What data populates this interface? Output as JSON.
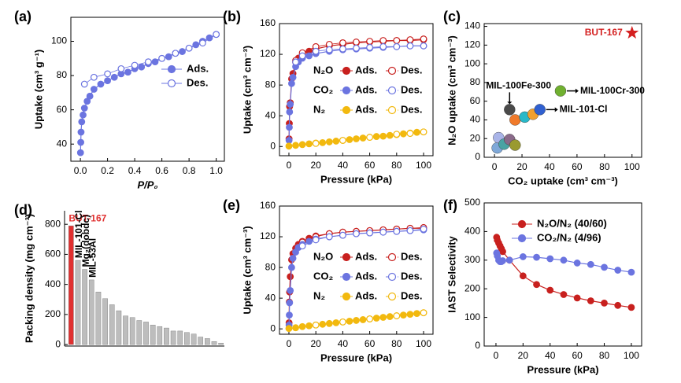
{
  "chart_data": [
    {
      "type": "line",
      "panel": "(a)",
      "xlabel": "P/P₀",
      "ylabel": "Uptake (cm³ g⁻¹)",
      "xlim": [
        -0.07,
        1.06
      ],
      "ylim": [
        30,
        114
      ],
      "xticks": [
        {
          "value": 0,
          "label": "0.0"
        },
        {
          "value": 0.2,
          "label": "0.2"
        },
        {
          "value": 0.4,
          "label": "0.4"
        },
        {
          "value": 0.6,
          "label": "0.6"
        },
        {
          "value": 0.8,
          "label": "0.8"
        },
        {
          "value": 1,
          "label": "1.0"
        }
      ],
      "yticks": [
        40,
        60,
        80,
        100
      ],
      "series": [
        {
          "name": "Ads.",
          "color": "#6b74e0",
          "marker": "filled",
          "x": [
            0.001,
            0.003,
            0.005,
            0.01,
            0.02,
            0.03,
            0.05,
            0.07,
            0.1,
            0.15,
            0.2,
            0.25,
            0.3,
            0.35,
            0.4,
            0.45,
            0.5,
            0.55,
            0.6,
            0.65,
            0.7,
            0.75,
            0.8,
            0.85,
            0.9,
            0.95,
            1.0
          ],
          "values": [
            35,
            41,
            47,
            53,
            57,
            61,
            65,
            68,
            72,
            75,
            77,
            79,
            81,
            82,
            84,
            85,
            87,
            88,
            90,
            91,
            93,
            94,
            96,
            98,
            100,
            102,
            104
          ]
        },
        {
          "name": "Des.",
          "color": "#6b74e0",
          "marker": "open",
          "x": [
            0.03,
            0.1,
            0.2,
            0.3,
            0.4,
            0.5,
            0.6,
            0.7,
            0.8,
            0.9,
            1.0
          ],
          "values": [
            75,
            79,
            81,
            84,
            86,
            88,
            90,
            93,
            96,
            99,
            104
          ]
        }
      ]
    },
    {
      "type": "line",
      "panel": "(b)",
      "xlabel": "Pressure (kPa)",
      "ylabel": "Uptake (cm³ cm⁻³)",
      "xlim": [
        -7,
        107
      ],
      "ylim": [
        -12,
        160
      ],
      "xticks": [
        0,
        20,
        40,
        60,
        80,
        100
      ],
      "yticks": [
        0,
        40,
        80,
        120,
        160
      ],
      "series": [
        {
          "group": "N₂O",
          "name": "Ads.",
          "color": "#c8201e",
          "marker": "filled",
          "x": [
            0.1,
            0.3,
            0.5,
            1,
            2,
            3,
            5,
            7,
            10,
            15,
            20,
            30,
            40,
            50,
            60,
            70,
            80,
            90,
            100
          ],
          "values": [
            10,
            30,
            52,
            57,
            88,
            95,
            110,
            115,
            120,
            124,
            127,
            131,
            133,
            135,
            136,
            137,
            138,
            138,
            139
          ]
        },
        {
          "group": "N₂O",
          "name": "Des.",
          "color": "#c8201e",
          "marker": "open",
          "x": [
            5,
            10,
            20,
            30,
            40,
            50,
            60,
            70,
            80,
            90,
            100
          ],
          "values": [
            112,
            122,
            130,
            133,
            135,
            136,
            137,
            138,
            138,
            139,
            140
          ]
        },
        {
          "group": "CO₂",
          "name": "Ads.",
          "color": "#6b74e0",
          "marker": "filled",
          "x": [
            0.1,
            0.3,
            0.5,
            1,
            2,
            3,
            5,
            7,
            10,
            15,
            20,
            30,
            40,
            50,
            60,
            70,
            80,
            90,
            100
          ],
          "values": [
            8,
            25,
            45,
            55,
            82,
            90,
            104,
            110,
            115,
            118,
            121,
            124,
            126,
            127,
            128,
            129,
            130,
            131,
            131
          ]
        },
        {
          "group": "CO₂",
          "name": "Des.",
          "color": "#6b74e0",
          "marker": "open",
          "x": [
            5,
            10,
            20,
            30,
            40,
            50,
            60,
            70,
            80,
            90,
            100
          ],
          "values": [
            110,
            118,
            124,
            126,
            127,
            128,
            129,
            130,
            130,
            131,
            131
          ]
        },
        {
          "group": "N₂",
          "name": "Ads.",
          "color": "#f2b90f",
          "marker": "filled",
          "x": [
            0,
            5,
            10,
            15,
            20,
            25,
            30,
            35,
            40,
            45,
            50,
            55,
            60,
            65,
            70,
            75,
            80,
            85,
            90,
            95,
            100
          ],
          "values": [
            0.5,
            1.5,
            2.5,
            3.5,
            4.5,
            5,
            6,
            7,
            8,
            9,
            10,
            11,
            12,
            13,
            13.5,
            14.5,
            15.5,
            16.5,
            17.5,
            18.5,
            19
          ]
        },
        {
          "group": "N₂",
          "name": "Des.",
          "color": "#f2b90f",
          "marker": "open",
          "x": [
            20,
            40,
            60,
            80,
            90,
            100
          ],
          "values": [
            4,
            8,
            12,
            16,
            17,
            19
          ]
        }
      ]
    },
    {
      "type": "scatter",
      "panel": "(c)",
      "xlabel": "CO₂ uptake (cm³ cm⁻³)",
      "ylabel": "N₂O uptake (cm³ cm⁻³)",
      "xlim": [
        -7.5,
        107
      ],
      "ylim": [
        0,
        143
      ],
      "xticks": [
        0,
        20,
        40,
        60,
        80,
        100
      ],
      "yticks": [
        0,
        20,
        40,
        60,
        80,
        100,
        120,
        140
      ],
      "x": [
        2,
        3,
        7,
        11,
        15,
        11,
        15,
        22,
        28,
        33,
        48,
        100
      ],
      "values": [
        10,
        21,
        14,
        19,
        13,
        51,
        40,
        43,
        46,
        51,
        71,
        133
      ],
      "colors": [
        "#7fa8d8",
        "#a9b4e8",
        "#4aa3a3",
        "#8a6a8a",
        "#9a9a30",
        "#4a4a4a",
        "#f07a2a",
        "#28b8c8",
        "#f0a030",
        "#3060d0",
        "#70b030",
        "#d42020"
      ],
      "markers": [
        "circle",
        "circle",
        "circle",
        "circle",
        "circle",
        "circle",
        "circle",
        "circle",
        "circle",
        "circle",
        "circle",
        "star"
      ],
      "point_labels": [
        null,
        null,
        null,
        null,
        null,
        "MIL-100Fe-300",
        null,
        null,
        null,
        "MIL-101-Cl",
        "MIL-100Cr-300",
        "BUT-167"
      ]
    },
    {
      "type": "bar",
      "panel": "(d)",
      "ylabel": "Packing density (mg cm⁻³)",
      "ylim": [
        -10,
        890
      ],
      "yticks": [
        0,
        200,
        400,
        600,
        800
      ],
      "categories": [
        null,
        null,
        null,
        null,
        null,
        null,
        null,
        null,
        null,
        null,
        null,
        null,
        null,
        null,
        null,
        null,
        null,
        null,
        null,
        null,
        null,
        null,
        null
      ],
      "values": [
        790,
        560,
        500,
        430,
        350,
        305,
        265,
        225,
        190,
        180,
        160,
        150,
        130,
        120,
        110,
        90,
        90,
        80,
        70,
        50,
        40,
        20,
        10
      ],
      "colors": [
        "#e03030",
        "#bdbdbd",
        "#bdbdbd",
        "#bdbdbd",
        "#bdbdbd",
        "#bdbdbd",
        "#bdbdbd",
        "#bdbdbd",
        "#bdbdbd",
        "#bdbdbd",
        "#bdbdbd",
        "#bdbdbd",
        "#bdbdbd",
        "#bdbdbd",
        "#bdbdbd",
        "#bdbdbd",
        "#bdbdbd",
        "#bdbdbd",
        "#bdbdbd",
        "#bdbdbd",
        "#bdbdbd",
        "#bdbdbd",
        "#bdbdbd"
      ],
      "bar_labels": [
        "BUT-167",
        "MIL-101-Cl",
        "Mg₂(dobdc)",
        "MIL-53Al",
        null,
        null,
        null,
        null,
        null,
        null,
        null,
        null,
        null,
        null,
        null,
        null,
        null,
        null,
        null,
        null,
        null,
        null,
        null
      ]
    },
    {
      "type": "line",
      "panel": "(e)",
      "xlabel": "Pressure (kPa)",
      "ylabel": "Uptake (cm³ cm⁻³)",
      "xlim": [
        -7,
        107
      ],
      "ylim": [
        -7,
        160
      ],
      "xticks": [
        0,
        20,
        40,
        60,
        80,
        100
      ],
      "yticks": [
        0,
        40,
        80,
        120,
        160
      ],
      "series": [
        {
          "group": "N₂O",
          "name": "Ads.",
          "color": "#c8201e",
          "marker": "filled",
          "x": [
            0.1,
            0.3,
            0.5,
            1,
            2,
            3,
            5,
            7,
            10,
            15,
            20,
            30,
            40,
            50,
            60,
            70,
            80,
            90,
            100
          ],
          "values": [
            8,
            35,
            48,
            68,
            90,
            98,
            105,
            110,
            114,
            118,
            121,
            124,
            126,
            127,
            128,
            129,
            130,
            131,
            131
          ]
        },
        {
          "group": "N₂O",
          "name": "Des.",
          "color": "#c8201e",
          "marker": "open",
          "x": [
            10,
            20,
            30,
            40,
            50,
            60,
            70,
            80,
            90,
            100
          ],
          "values": [
            113,
            120,
            124,
            126,
            127,
            128,
            129,
            130,
            131,
            132
          ]
        },
        {
          "group": "CO₂",
          "name": "Ads.",
          "color": "#6b74e0",
          "marker": "filled",
          "x": [
            0.1,
            0.3,
            0.5,
            1,
            2,
            3,
            5,
            7,
            10,
            15,
            20,
            30,
            40,
            50,
            60,
            70,
            80,
            90,
            100
          ],
          "values": [
            5,
            18,
            34,
            50,
            80,
            92,
            100,
            106,
            110,
            114,
            117,
            120,
            122,
            124,
            125,
            126,
            127,
            128,
            129
          ]
        },
        {
          "group": "CO₂",
          "name": "Des.",
          "color": "#6b74e0",
          "marker": "open",
          "x": [
            10,
            20,
            30,
            40,
            50,
            60,
            70,
            80,
            90,
            100
          ],
          "values": [
            108,
            116,
            120,
            122,
            124,
            125,
            126,
            127,
            128,
            130
          ]
        },
        {
          "group": "N₂",
          "name": "Ads.",
          "color": "#f2b90f",
          "marker": "filled",
          "x": [
            0,
            5,
            10,
            15,
            20,
            25,
            30,
            35,
            40,
            45,
            50,
            55,
            60,
            65,
            70,
            75,
            80,
            85,
            90,
            95,
            100
          ],
          "values": [
            0.5,
            1.5,
            3,
            4,
            5,
            6,
            7,
            8,
            9,
            10,
            11,
            12,
            13,
            14,
            15,
            16,
            17,
            18,
            19,
            20,
            21
          ]
        },
        {
          "group": "N₂",
          "name": "Des.",
          "color": "#f2b90f",
          "marker": "open",
          "x": [
            20,
            40,
            60,
            80,
            100
          ],
          "values": [
            5,
            9,
            13,
            17,
            21
          ]
        }
      ]
    },
    {
      "type": "line",
      "panel": "(f)",
      "xlabel": "Pressure (kPa)",
      "ylabel": "IAST Selectivity",
      "xlim": [
        -8.7,
        107.6
      ],
      "ylim": [
        0,
        500
      ],
      "xticks": [
        0,
        20,
        40,
        60,
        80,
        100
      ],
      "yticks": [
        0,
        100,
        200,
        300,
        400,
        500
      ],
      "series": [
        {
          "name": "N₂O/N₂ (40/60)",
          "color": "#c8201e",
          "marker": "filled",
          "x": [
            0.5,
            1,
            2,
            3,
            4,
            5,
            10,
            20,
            30,
            40,
            50,
            60,
            70,
            80,
            90,
            100
          ],
          "values": [
            380,
            370,
            360,
            350,
            340,
            330,
            300,
            245,
            215,
            195,
            180,
            168,
            158,
            150,
            142,
            135
          ]
        },
        {
          "name": "CO₂/N₂ (4/96)",
          "color": "#6b74e0",
          "marker": "filled",
          "x": [
            0.5,
            1,
            2,
            3,
            4,
            5,
            10,
            20,
            30,
            40,
            50,
            60,
            70,
            80,
            90,
            100
          ],
          "values": [
            325,
            315,
            300,
            295,
            295,
            298,
            300,
            312,
            310,
            305,
            300,
            290,
            285,
            275,
            265,
            258
          ]
        }
      ]
    }
  ]
}
